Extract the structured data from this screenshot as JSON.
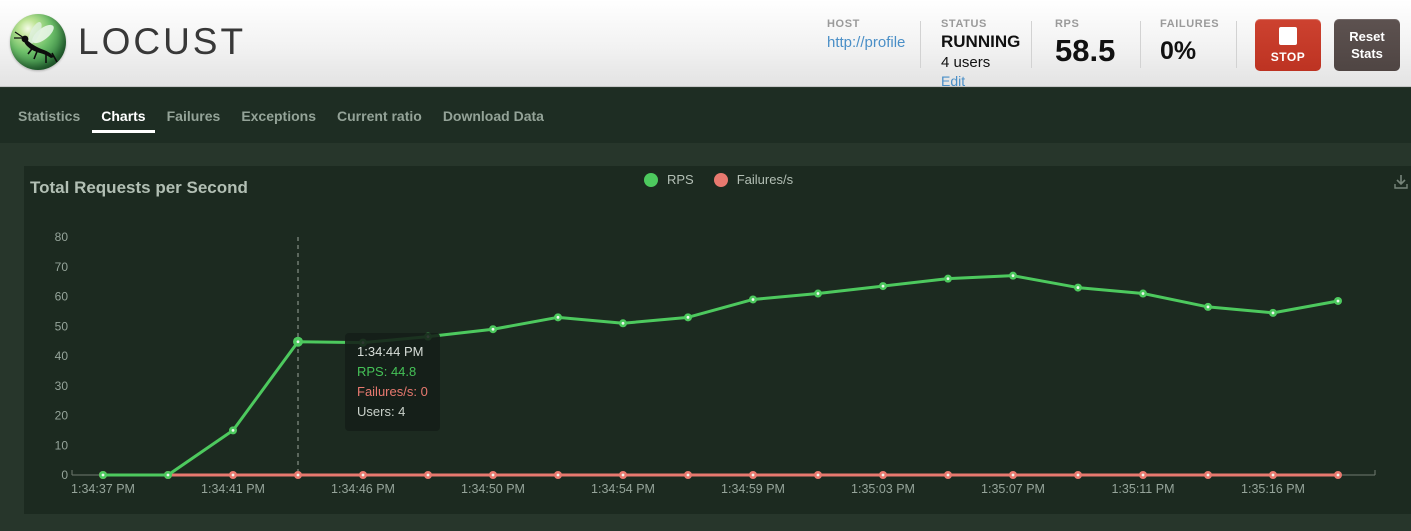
{
  "header": {
    "logo_text": "LOCUST",
    "host": {
      "label": "HOST",
      "value": "http://profile"
    },
    "status": {
      "label": "STATUS",
      "state": "RUNNING",
      "users": "4 users",
      "edit_label": "Edit"
    },
    "rps": {
      "label": "RPS",
      "value": "58.5"
    },
    "failures": {
      "label": "FAILURES",
      "value": "0%"
    },
    "stop_label": "STOP",
    "reset_label": "Reset Stats"
  },
  "nav": {
    "tabs": [
      {
        "label": "Statistics",
        "active": false
      },
      {
        "label": "Charts",
        "active": true
      },
      {
        "label": "Failures",
        "active": false
      },
      {
        "label": "Exceptions",
        "active": false
      },
      {
        "label": "Current ratio",
        "active": false
      },
      {
        "label": "Download Data",
        "active": false
      }
    ]
  },
  "chart": {
    "title": "Total Requests per Second",
    "tooltip": {
      "time": "1:34:44 PM",
      "rps_line": "RPS: 44.8",
      "failures_line": "Failures/s: 0",
      "users_line": "Users: 4"
    }
  },
  "chart_data": {
    "type": "line",
    "title": "Total Requests per Second",
    "x_tick_labels": [
      "1:34:37 PM",
      "1:34:41 PM",
      "1:34:46 PM",
      "1:34:50 PM",
      "1:34:54 PM",
      "1:34:59 PM",
      "1:35:03 PM",
      "1:35:07 PM",
      "1:35:11 PM",
      "1:35:16 PM"
    ],
    "x_tick_every": 2,
    "n_points": 20,
    "series": [
      {
        "name": "RPS",
        "color": "#4dc95e",
        "values": [
          0,
          0,
          15,
          44.8,
          44.5,
          46.5,
          49,
          53,
          51,
          53,
          59,
          61,
          63.5,
          66,
          67,
          63,
          61,
          56.5,
          54.5,
          58.5
        ]
      },
      {
        "name": "Failures/s",
        "color": "#e8796f",
        "values": [
          0,
          0,
          0,
          0,
          0,
          0,
          0,
          0,
          0,
          0,
          0,
          0,
          0,
          0,
          0,
          0,
          0,
          0,
          0,
          0
        ]
      }
    ],
    "ylim": [
      0,
      80
    ],
    "y_ticks": [
      0,
      10,
      20,
      30,
      40,
      50,
      60,
      70,
      80
    ],
    "grid": false,
    "legend_position": "top-center",
    "hover": {
      "index": 3,
      "time": "1:34:44 PM",
      "rps": 44.8,
      "failures": 0,
      "users": 4
    }
  },
  "colors": {
    "rps_green": "#4dc95e",
    "failures_red": "#e8796f",
    "panel_bg": "#1c2a20",
    "page_bg": "#27362b",
    "nav_bg": "#1e2d23",
    "stop_red": "#c43a27",
    "link_blue": "#4a8fc7",
    "axis_text": "#95a49a"
  }
}
